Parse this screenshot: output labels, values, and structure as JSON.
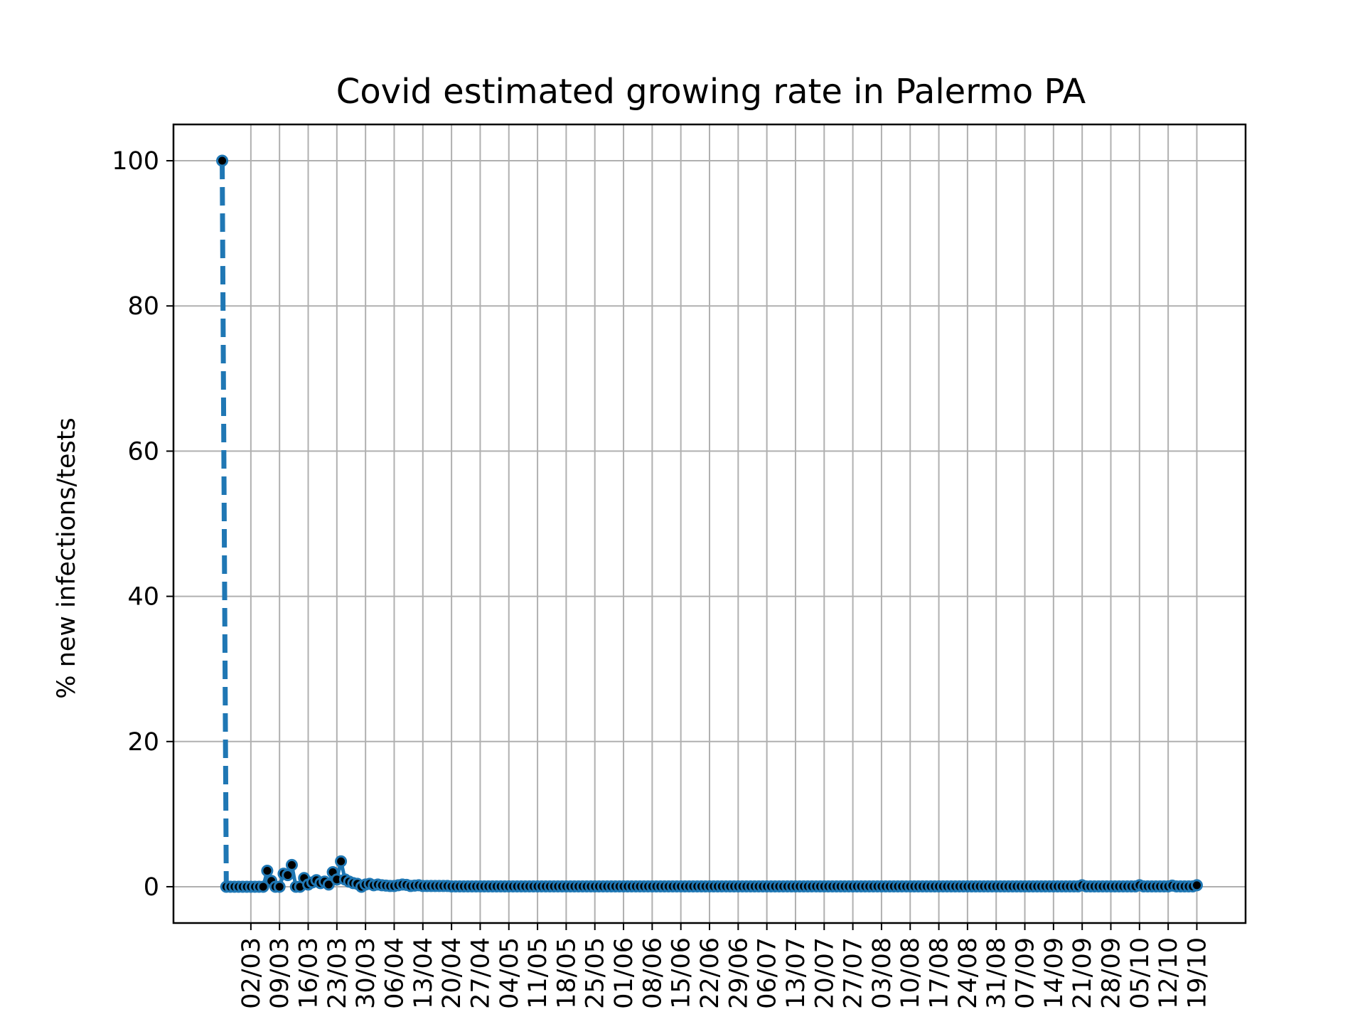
{
  "chart_data": {
    "type": "line",
    "title": "Covid estimated growing rate in Palermo PA",
    "xlabel": "",
    "ylabel": "% new infections/tests",
    "grid": true,
    "legend": "none",
    "start_date": "2020-02-24",
    "end_date": "2020-10-19",
    "ylim": [
      -5,
      105
    ],
    "yticks": [
      0,
      20,
      40,
      60,
      80,
      100
    ],
    "xtick_dates": [
      "2020-03-02",
      "2020-03-09",
      "2020-03-16",
      "2020-03-23",
      "2020-03-30",
      "2020-04-06",
      "2020-04-13",
      "2020-04-20",
      "2020-04-27",
      "2020-05-04",
      "2020-05-11",
      "2020-05-18",
      "2020-05-25",
      "2020-06-01",
      "2020-06-08",
      "2020-06-15",
      "2020-06-22",
      "2020-06-29",
      "2020-07-06",
      "2020-07-13",
      "2020-07-20",
      "2020-07-27",
      "2020-08-03",
      "2020-08-10",
      "2020-08-17",
      "2020-08-24",
      "2020-08-31",
      "2020-09-07",
      "2020-09-14",
      "2020-09-21",
      "2020-09-28",
      "2020-10-05",
      "2020-10-12",
      "2020-10-19"
    ],
    "xtick_labels": [
      "02/03",
      "09/03",
      "16/03",
      "23/03",
      "30/03",
      "06/04",
      "13/04",
      "20/04",
      "27/04",
      "04/05",
      "11/05",
      "18/05",
      "25/05",
      "01/06",
      "08/06",
      "15/06",
      "22/06",
      "29/06",
      "06/07",
      "13/07",
      "20/07",
      "27/07",
      "03/08",
      "10/08",
      "17/08",
      "24/08",
      "31/08",
      "07/09",
      "14/09",
      "21/09",
      "28/09",
      "05/10",
      "12/10",
      "19/10"
    ],
    "series_color": "#1f77b4",
    "marker_color": "#000000",
    "series": [
      {
        "values": [
          100,
          0,
          0,
          0,
          0,
          0,
          0,
          0,
          0,
          0,
          0,
          2.2,
          0.8,
          0,
          0,
          1.8,
          1.6,
          3.0,
          0,
          0,
          1.2,
          0.3,
          0.6,
          0.9,
          0.5,
          0.7,
          0.3,
          2.0,
          1.0,
          3.5,
          1.0,
          0.7,
          0.5,
          0.4,
          0,
          0.3,
          0.4,
          0.2,
          0.3,
          0.2,
          0.15,
          0.1,
          0.1,
          0.2,
          0.3,
          0.25,
          0.1,
          0.15,
          0.2,
          0.1,
          0.1,
          0.1,
          0.1,
          0.1,
          0.1,
          0.1,
          0.05,
          0.05,
          0.05,
          0.05,
          0.05,
          0.05,
          0.05,
          0.05,
          0.05,
          0.05
        ]
      }
    ],
    "tail_value": 0.05,
    "late_bumps": {
      "2020-09-21": 0.2,
      "2020-10-05": 0.2,
      "2020-10-13": 0.15,
      "2020-10-19": 0.2
    }
  }
}
